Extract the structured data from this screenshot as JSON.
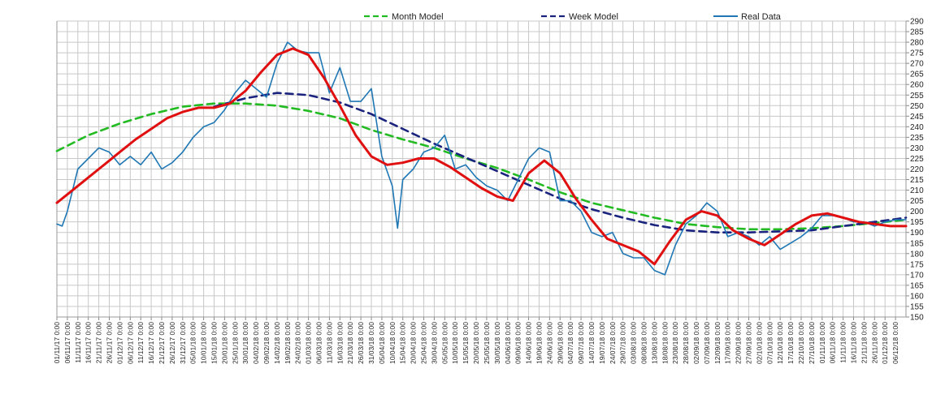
{
  "chart_data": {
    "type": "line",
    "title": "",
    "xlabel": "",
    "ylabel": "",
    "ylim": [
      150,
      290
    ],
    "y_ticks": [
      290,
      285,
      280,
      275,
      270,
      265,
      260,
      255,
      250,
      245,
      240,
      235,
      230,
      225,
      220,
      215,
      210,
      205,
      200,
      195,
      190,
      185,
      180,
      175,
      170,
      165,
      160,
      155,
      150
    ],
    "y_axis_side": "right",
    "grid": true,
    "legend_position": "top",
    "x_ticks": [
      "01/11/17 0:00",
      "06/11/17 0:00",
      "11/11/17 0:00",
      "16/11/17 0:00",
      "21/11/17 0:00",
      "26/11/17 0:00",
      "01/12/17 0:00",
      "06/12/17 0:00",
      "11/12/17 0:00",
      "16/12/17 0:00",
      "21/12/17 0:00",
      "26/12/17 0:00",
      "31/12/17 0:00",
      "05/01/18 0:00",
      "10/01/18 0:00",
      "15/01/18 0:00",
      "20/01/18 0:00",
      "25/01/18 0:00",
      "30/01/18 0:00",
      "04/02/18 0:00",
      "09/02/18 0:00",
      "14/02/18 0:00",
      "19/02/18 0:00",
      "24/02/18 0:00",
      "01/03/18 0:00",
      "06/03/18 0:00",
      "11/03/18 0:00",
      "16/03/18 0:00",
      "21/03/18 0:00",
      "26/03/18 0:00",
      "31/03/18 0:00",
      "05/04/18 0:00",
      "10/04/18 0:00",
      "15/04/18 0:00",
      "20/04/18 0:00",
      "25/04/18 0:00",
      "30/04/18 0:00",
      "05/05/18 0:00",
      "10/05/18 0:00",
      "15/05/18 0:00",
      "20/05/18 0:00",
      "25/05/18 0:00",
      "30/05/18 0:00",
      "04/06/18 0:00",
      "09/06/18 0:00",
      "14/06/18 0:00",
      "19/06/18 0:00",
      "24/06/18 0:00",
      "29/06/18 0:00",
      "04/07/18 0:00",
      "09/07/18 0:00",
      "14/07/18 0:00",
      "19/07/18 0:00",
      "24/07/18 0:00",
      "29/07/18 0:00",
      "03/08/18 0:00",
      "08/08/18 0:00",
      "13/08/18 0:00",
      "18/08/18 0:00",
      "23/08/18 0:00",
      "28/08/18 0:00",
      "02/09/18 0:00",
      "07/09/18 0:00",
      "12/09/18 0:00",
      "17/09/18 0:00",
      "22/09/18 0:00",
      "27/09/18 0:00",
      "02/10/18 0:00",
      "07/10/18 0:00",
      "12/10/18 0:00",
      "17/10/18 0:00",
      "22/10/18 0:00",
      "27/10/18 0:00",
      "01/11/18 0:00",
      "06/11/18 0:00",
      "11/11/18 0:00",
      "16/11/18 0:00",
      "21/11/18 0:00",
      "26/11/18 0:00",
      "01/12/18 0:00",
      "06/12/18 0:00"
    ],
    "x_range_ticks": [
      0,
      81
    ],
    "series": [
      {
        "name": "Month Model",
        "color": "#22bb22",
        "dash": "dashed",
        "x": [
          0,
          3,
          6,
          9,
          12,
          15,
          18,
          21,
          24,
          27,
          30,
          33,
          36,
          39,
          42,
          45,
          48,
          51,
          54,
          57,
          60,
          63,
          66,
          69,
          72,
          75,
          78,
          81
        ],
        "values": [
          228.5,
          236,
          241.5,
          246,
          249.5,
          251,
          251,
          250,
          247.5,
          244,
          238.5,
          234,
          230,
          225,
          220.5,
          215,
          209,
          204,
          200.5,
          197,
          194,
          192.5,
          191.5,
          191.5,
          192,
          193,
          194.5,
          196
        ]
      },
      {
        "name": "Week Model",
        "color": "#1a237e",
        "dash": "dashed",
        "x": [
          15,
          18,
          21,
          24,
          27,
          30,
          33,
          36,
          39,
          42,
          45,
          48,
          51,
          54,
          57,
          60,
          63,
          66,
          69,
          72,
          75,
          78,
          81
        ],
        "values": [
          249.5,
          253.5,
          256,
          255,
          251.5,
          246,
          239,
          232,
          225.5,
          219,
          212.5,
          206,
          201,
          197,
          193.5,
          191,
          190,
          190,
          190.5,
          191,
          193,
          195,
          197
        ]
      },
      {
        "name": "Real Data",
        "color": "#1f77b4",
        "dash": "solid",
        "x": [
          0,
          0.5,
          1,
          2,
          3,
          4,
          5,
          6,
          7,
          8,
          9,
          10,
          11,
          12,
          13,
          14,
          15,
          16,
          17,
          18,
          19,
          20,
          21,
          22,
          23,
          24,
          25,
          26,
          27,
          28,
          29,
          30,
          31,
          32,
          32.5,
          33,
          34,
          35,
          36,
          37,
          38,
          39,
          40,
          41,
          42,
          43,
          44,
          45,
          46,
          47,
          48,
          49,
          50,
          51,
          52,
          53,
          54,
          55,
          56,
          57,
          58,
          59,
          60,
          61,
          62,
          63,
          64,
          65,
          66,
          67,
          68,
          69,
          70,
          71,
          72,
          73,
          74,
          75,
          76,
          77,
          78,
          79,
          80,
          81
        ],
        "values": [
          194,
          193,
          200,
          220,
          225,
          230,
          228,
          222,
          226,
          222,
          228,
          220,
          223,
          228,
          235,
          240,
          242,
          248,
          256,
          262,
          258,
          254,
          270,
          280,
          276,
          275,
          275,
          256,
          268,
          252,
          252,
          258,
          226,
          212,
          192,
          215,
          220,
          228,
          230,
          236,
          220,
          222,
          216,
          212,
          210,
          205,
          215,
          225,
          230,
          228,
          205,
          205,
          200,
          190,
          188,
          190,
          180,
          178,
          178,
          172,
          170,
          184,
          194,
          198,
          204,
          200,
          188,
          190,
          188,
          184,
          188,
          182,
          185,
          188,
          192,
          198,
          198,
          197,
          195,
          195,
          193,
          195,
          196,
          196
        ]
      },
      {
        "name": "",
        "color": "#e01010",
        "dash": "solid",
        "x": [
          0,
          1.5,
          3,
          4.5,
          6,
          7.5,
          9,
          10.5,
          12,
          13.5,
          15,
          16.5,
          18,
          19.5,
          21,
          22.5,
          24,
          25.5,
          27,
          28.5,
          30,
          31.5,
          33,
          34.5,
          36,
          37.5,
          39,
          40.5,
          42,
          43.5,
          45,
          46.5,
          48,
          49.5,
          51,
          52.5,
          54,
          55.5,
          57,
          58.5,
          60,
          61.5,
          63,
          64.5,
          66,
          67.5,
          69,
          70.5,
          72,
          73.5,
          75,
          76.5,
          78,
          79.5,
          81
        ],
        "values": [
          204,
          210,
          216,
          222,
          228,
          234,
          239,
          244,
          247,
          249,
          249,
          251,
          257,
          266,
          274,
          277,
          274,
          263,
          250,
          236,
          226,
          222,
          223,
          225,
          225,
          221,
          216,
          211,
          207,
          205,
          218,
          224,
          218,
          206,
          196,
          187,
          184,
          181,
          175,
          186,
          196,
          200,
          198,
          191,
          187,
          184,
          189,
          194,
          198,
          199,
          197,
          195,
          194,
          193,
          193
        ]
      }
    ]
  }
}
